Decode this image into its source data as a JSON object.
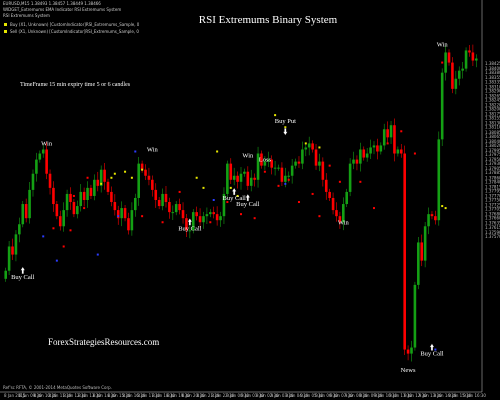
{
  "header": {
    "symbol_line": "EURUSD,M15 1.38493 1.38457 1.38449 1.38466",
    "indicator_line": "WIDGET_Extremums EMA Indicator RSI Extremums System",
    "mt_title": "RSI Extremums System",
    "legend": [
      {
        "label": "Buy (X1, Unknown) [CustomIndicator]RSI_Extremums_Sample, 0",
        "color": "#e6e600"
      },
      {
        "label": "Sell (X1, Unknown) [CustomIndicator]RSI_Extremums_Sample, 0",
        "color": "#e6e600"
      }
    ]
  },
  "title": "RSI Extremums Binary System",
  "subtitle": "TimeFrame 15 min expiry time 5 or 6 candles",
  "watermark": "ForexStrategiesResources.com",
  "footer_left": "Ref'sc RFTA, © 2001-2014 MetaQuotes Software Corp.",
  "colors": {
    "background": "#000000",
    "bull": "#14a014",
    "bear": "#ff0000",
    "dot_buy": "#e8e800",
    "dot_sell": "#ff0000",
    "dot_blue": "#2b3cff",
    "text": "#ffffff"
  },
  "annotations": [
    {
      "text": "Win",
      "x": 12,
      "y": 1.3802
    },
    {
      "text": "Buy Call",
      "x": 5,
      "y": 1.3736,
      "arrow": true
    },
    {
      "text": "Win",
      "x": 43,
      "y": 1.3799
    },
    {
      "text": "Buy Call",
      "x": 54,
      "y": 1.376,
      "arrow": true
    },
    {
      "text": "Buy Call",
      "x": 67,
      "y": 1.3775,
      "arrow": true
    },
    {
      "text": "Win",
      "x": 71,
      "y": 1.3796
    },
    {
      "text": "Loss",
      "x": 76,
      "y": 1.3794
    },
    {
      "text": "Buy Put",
      "x": 82,
      "y": 1.3813,
      "arrow": true,
      "arrow_down": true
    },
    {
      "text": "Buy Call",
      "x": 71,
      "y": 1.3772,
      "arrow": true
    },
    {
      "text": "Win",
      "x": 99,
      "y": 1.3763
    },
    {
      "text": "News",
      "x": 118,
      "y": 1.369
    },
    {
      "text": "Buy Call",
      "x": 125,
      "y": 1.3698,
      "arrow": true
    },
    {
      "text": "Win",
      "x": 128,
      "y": 1.3851
    }
  ],
  "chart_data": {
    "type": "candlestick",
    "instrument": "EURUSD",
    "timeframe": "M15",
    "y_ticks": [
      1.38425,
      1.384,
      1.3838,
      1.38355,
      1.38335,
      1.3831,
      1.3829,
      1.38265,
      1.38245,
      1.3822,
      1.382,
      1.38175,
      1.38155,
      1.3813,
      1.3811,
      1.38085,
      1.38065,
      1.3804,
      1.3802,
      1.37995,
      1.37975,
      1.3795,
      1.3793,
      1.37905,
      1.37885,
      1.3786,
      1.3784,
      1.37815,
      1.37795,
      1.3777,
      1.3775,
      1.37725,
      1.37705,
      1.3768,
      1.3766,
      1.37635,
      1.37615,
      1.3759,
      1.3757
    ],
    "x_ticks": [
      "8 Jan 2015",
      "8 Jan 09:30",
      "8 Jan 10:30",
      "8 Jan 11:30",
      "8 Jan 12:30",
      "8 Jan 13:30",
      "8 Jan 14:30",
      "8 Jan 15:30",
      "8 Jan 16:30",
      "8 Jan 17:30",
      "8 Jan 18:30",
      "8 Jan 19:30",
      "8 Jan 20:30",
      "8 Jan 21:30",
      "8 Jan 22:30",
      "9 Jan 00:30",
      "9 Jan 01:30",
      "9 Jan 02:30",
      "9 Jan 03:30",
      "9 Jan 04:30",
      "9 Jan 05:30",
      "9 Jan 06:30",
      "9 Jan 07:30",
      "9 Jan 08:30",
      "9 Jan 09:30",
      "9 Jan 10:30",
      "9 Jan 11:30",
      "9 Jan 12:30",
      "9 Jan 13:30",
      "9 Jan 14:30",
      "9 Jan 15:30",
      "9 Jan 16:30"
    ],
    "ylim": [
      1.368,
      1.387
    ],
    "closes": [
      1.374,
      1.3752,
      1.3748,
      1.3758,
      1.3763,
      1.3773,
      1.3766,
      1.378,
      1.3788,
      1.3795,
      1.3798,
      1.38,
      1.3788,
      1.3781,
      1.3773,
      1.3767,
      1.3762,
      1.377,
      1.3778,
      1.3774,
      1.3768,
      1.3772,
      1.3779,
      1.3775,
      1.3781,
      1.3777,
      1.3785,
      1.3782,
      1.379,
      1.3784,
      1.3779,
      1.3774,
      1.377,
      1.3766,
      1.3771,
      1.3766,
      1.376,
      1.377,
      1.3776,
      1.3793,
      1.379,
      1.3787,
      1.3785,
      1.378,
      1.3775,
      1.3772,
      1.3778,
      1.3774,
      1.3769,
      1.3769,
      1.3773,
      1.377,
      1.3766,
      1.376,
      1.376,
      1.3769,
      1.3767,
      1.3764,
      1.3767,
      1.3768,
      1.3769,
      1.3768,
      1.3765,
      1.3767,
      1.3778,
      1.3793,
      1.3785,
      1.3787,
      1.3784,
      1.3788,
      1.3789,
      1.3782,
      1.3786,
      1.3785,
      1.3798,
      1.3792,
      1.3794,
      1.3795,
      1.3791,
      1.3791,
      1.3791,
      1.3784,
      1.3787,
      1.3787,
      1.3792,
      1.3794,
      1.3793,
      1.38,
      1.3801,
      1.3803,
      1.38,
      1.3792,
      1.3794,
      1.3785,
      1.3779,
      1.3776,
      1.377,
      1.3767,
      1.3764,
      1.3773,
      1.3779,
      1.3793,
      1.3795,
      1.3793,
      1.38,
      1.3796,
      1.3798,
      1.3801,
      1.3802,
      1.3799,
      1.3802,
      1.381,
      1.3806,
      1.3812,
      1.3798,
      1.38,
      1.3798,
      1.3701,
      1.3699,
      1.3702,
      1.3733,
      1.3754,
      1.3745,
      1.3762,
      1.3768,
      1.3767,
      1.3765,
      1.3805,
      1.3838,
      1.3848,
      1.3843,
      1.383,
      1.3835,
      1.3839,
      1.384,
      1.3849,
      1.3848,
      1.3844,
      1.3845
    ],
    "buy_dots": [
      [
        28,
        1.3783
      ],
      [
        31,
        1.3786
      ],
      [
        32,
        1.3788
      ],
      [
        35,
        1.3789
      ],
      [
        37,
        1.3786
      ],
      [
        40,
        1.379
      ],
      [
        56,
        1.3786
      ],
      [
        58,
        1.3781
      ],
      [
        62,
        1.3799
      ],
      [
        66,
        1.3781
      ],
      [
        68,
        1.3777
      ],
      [
        79,
        1.3817
      ],
      [
        82,
        1.3811
      ],
      [
        88,
        1.3803
      ],
      [
        92,
        1.3801
      ],
      [
        128,
        1.3772
      ],
      [
        129,
        1.3771
      ]
    ],
    "sell_dots": [
      [
        14,
        1.3761
      ],
      [
        17,
        1.3752
      ],
      [
        19,
        1.376
      ],
      [
        20,
        1.3777
      ],
      [
        23,
        1.3771
      ],
      [
        24,
        1.3786
      ],
      [
        40,
        1.3767
      ],
      [
        46,
        1.3764
      ],
      [
        51,
        1.3779
      ],
      [
        60,
        1.3764
      ],
      [
        65,
        1.3774
      ],
      [
        69,
        1.3768
      ],
      [
        73,
        1.3766
      ],
      [
        76,
        1.3789
      ],
      [
        80,
        1.3782
      ],
      [
        83,
        1.3785
      ],
      [
        86,
        1.3774
      ],
      [
        90,
        1.3778
      ],
      [
        92,
        1.3767
      ],
      [
        95,
        1.3792
      ],
      [
        98,
        1.3784
      ],
      [
        104,
        1.3784
      ],
      [
        108,
        1.3771
      ],
      [
        112,
        1.3803
      ],
      [
        116,
        1.3809
      ],
      [
        120,
        1.3798
      ],
      [
        128,
        1.3843
      ]
    ],
    "blue_dots": [
      [
        11,
        1.3757
      ],
      [
        15,
        1.3745
      ],
      [
        27,
        1.3748
      ],
      [
        33,
        1.3767
      ],
      [
        38,
        1.3799
      ],
      [
        61,
        1.3775
      ],
      [
        82,
        1.3783
      ],
      [
        126,
        1.3701
      ]
    ]
  }
}
